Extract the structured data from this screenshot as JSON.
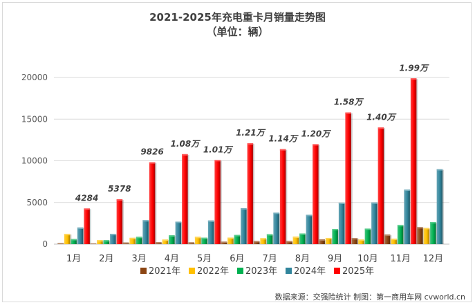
{
  "chart_data": {
    "type": "bar",
    "title": "2021-2025年充电重卡月销量走势图",
    "subtitle": "（单位：辆）",
    "categories": [
      "1月",
      "2月",
      "3月",
      "4月",
      "5月",
      "6月",
      "7月",
      "8月",
      "9月",
      "10月",
      "11月",
      "12月"
    ],
    "yticks": [
      0,
      5000,
      10000,
      15000,
      20000
    ],
    "ylim": [
      0,
      21000
    ],
    "grid": true,
    "legend_position": "bottom",
    "series": [
      {
        "name": "2021年",
        "color": "#8B4513",
        "values": [
          130,
          90,
          200,
          230,
          220,
          300,
          380,
          380,
          570,
          730,
          1150,
          2050
        ]
      },
      {
        "name": "2022年",
        "color": "#FFC000",
        "values": [
          1230,
          480,
          760,
          550,
          880,
          790,
          720,
          900,
          750,
          550,
          650,
          1950
        ]
      },
      {
        "name": "2023年",
        "color": "#00B050",
        "values": [
          620,
          480,
          880,
          1060,
          770,
          1100,
          1200,
          1280,
          1820,
          1870,
          2300,
          2650
        ]
      },
      {
        "name": "2024年",
        "color": "#31859C",
        "values": [
          2000,
          1230,
          2880,
          2700,
          2840,
          4310,
          3780,
          3520,
          4980,
          5000,
          6550,
          9000
        ]
      },
      {
        "name": "2025年",
        "color": "#FF0000",
        "values": [
          4284,
          5378,
          9826,
          10800,
          10100,
          12100,
          11400,
          12000,
          15800,
          14000,
          19900,
          null
        ]
      }
    ],
    "data_labels": [
      "4284",
      "5378",
      "9826",
      "1.08万",
      "1.01万",
      "1.21万",
      "1.14万",
      "1.20万",
      "1.58万",
      "1.40万",
      "1.99万"
    ]
  },
  "footer": {
    "source": "数据来源：交强险统计 制图：第一商用车网 cvworld.cn"
  }
}
